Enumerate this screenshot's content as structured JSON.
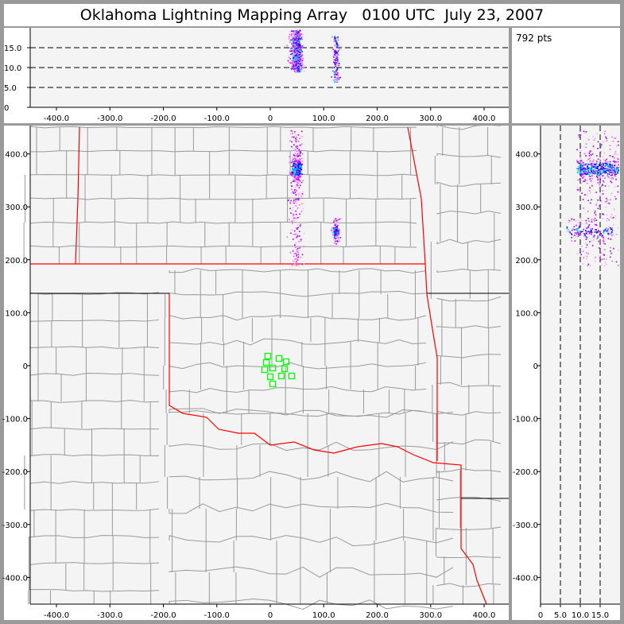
{
  "title": "Oklahoma Lightning Mapping Array   0100 UTC  July 23, 2007",
  "point_count_label": "792 pts",
  "colors": {
    "background": "#f4f4f4",
    "frame": "#9a9a9a",
    "county_lines": "#999999",
    "state_border_red": "#ff0000",
    "state_border_black": "#000000",
    "stations": "#00ff00",
    "source_colors": [
      "#ffaaff",
      "#ff55ff",
      "#9900ff",
      "#0000ff",
      "#00ccff"
    ]
  },
  "chart_data": [
    {
      "type": "scatter",
      "panel": "plan-view",
      "xlabel": "",
      "ylabel": "",
      "xlim": [
        -450,
        445
      ],
      "ylim": [
        -445,
        450
      ],
      "x_ticks": [
        "-400.0",
        "-300.0",
        "-200.0",
        "-100.0",
        "0",
        "100.0",
        "200.0",
        "300.0",
        "400.0"
      ],
      "y_ticks": [
        "400.0",
        "300.0",
        "200.0",
        "100.0",
        "0",
        "-100.0",
        "-200.0",
        "-300.0",
        "-400.0"
      ],
      "stations": [
        [
          -4.5,
          18
        ],
        [
          -7.4,
          6
        ],
        [
          16.4,
          13.5
        ],
        [
          29.7,
          7.5
        ],
        [
          -10.4,
          -7.5
        ],
        [
          4.5,
          -4.5
        ],
        [
          26.8,
          -6
        ],
        [
          0,
          -21
        ],
        [
          20.8,
          -19.5
        ],
        [
          40.1,
          -19.5
        ],
        [
          4.5,
          -34.5
        ]
      ],
      "source_clusters": [
        {
          "x_center": 49,
          "y_center": 372,
          "x_spread": 8,
          "y_range": [
            190,
            445
          ],
          "alt_range": [
            9,
            19.5
          ],
          "count": 640
        },
        {
          "x_center": 122,
          "y_center": 255,
          "x_spread": 5,
          "y_range": [
            235,
            280
          ],
          "alt_range": [
            6.5,
            18
          ],
          "count": 152
        }
      ]
    },
    {
      "type": "scatter",
      "panel": "east-west-altitude",
      "xlim": [
        -450,
        445
      ],
      "ylim": [
        0,
        20
      ],
      "x_ticks": [
        "-400.0",
        "-300.0",
        "-200.0",
        "-100.0",
        "0",
        "100.0",
        "200.0",
        "300.0",
        "400.0"
      ],
      "y_ticks": [
        "0",
        "5.0",
        "10.0",
        "15.0"
      ],
      "grid_dashed_at": [
        5,
        10,
        15
      ]
    },
    {
      "type": "scatter",
      "panel": "altitude-north-south",
      "xlim": [
        0,
        20
      ],
      "ylim": [
        -445,
        450
      ],
      "x_ticks": [
        "0",
        "5.0",
        "10.0",
        "15.0"
      ],
      "y_ticks": [
        "400.0",
        "300.0",
        "200.0",
        "100.0",
        "0",
        "-100.0",
        "-200.0",
        "-300.0",
        "-400.0"
      ],
      "grid_dashed_at": [
        5,
        10,
        15
      ]
    }
  ]
}
